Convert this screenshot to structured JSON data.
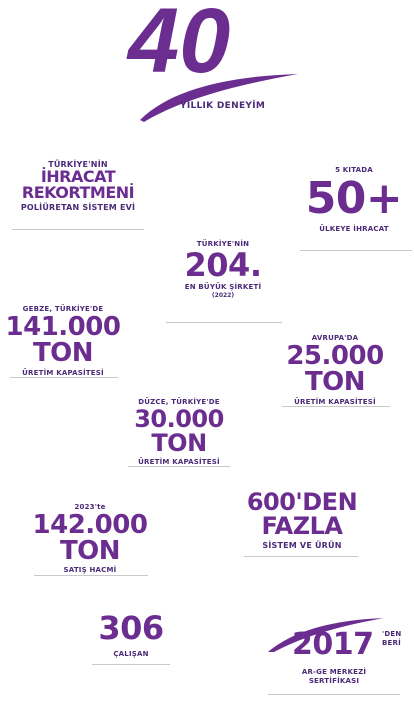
{
  "hero": {
    "number": "40",
    "label": "YILLIK DENEYİM"
  },
  "stats": {
    "export_record": {
      "line1": "TÜRKİYE'NİN",
      "line2": "İHRACAT",
      "line3": "REKORTMENİ",
      "line4": "POLİÜRETAN SİSTEM EVİ"
    },
    "continents": {
      "top": "5 KITADA",
      "value": "50+",
      "bottom": "ÜLKEYE İHRACAT"
    },
    "largest": {
      "top": "TÜRKİYE'NİN",
      "value": "204.",
      "bottom": "EN BÜYÜK ŞİRKETİ",
      "note": "(2022)"
    },
    "gebze": {
      "top": "GEBZE, TÜRKİYE'DE",
      "value": "141.000",
      "unit": "TON",
      "bottom": "ÜRETİM KAPASİTESİ"
    },
    "europe": {
      "top": "AVRUPA'DA",
      "value": "25.000",
      "unit": "TON",
      "bottom": "ÜRETİM KAPASİTESİ"
    },
    "duzce": {
      "top": "DÜZCE, TÜRKİYE'DE",
      "value": "30.000",
      "unit": "TON",
      "bottom": "ÜRETİM KAPASİTESİ"
    },
    "sales": {
      "top": "2023'te",
      "value": "142.000",
      "unit": "TON",
      "bottom": "SATIŞ HACMİ"
    },
    "systems": {
      "line1": "600'DEN",
      "line2": "FAZLA",
      "bottom": "SİSTEM VE ÜRÜN"
    },
    "employees": {
      "value": "306",
      "bottom": "ÇALIŞAN"
    },
    "rnd": {
      "value": "2017",
      "suffix1": "'DEN",
      "suffix2": "BERİ",
      "bottom1": "AR-GE MERKEZİ",
      "bottom2": "SERTİFİKASI"
    }
  },
  "colors": {
    "brand_purple": "#6b2d8f",
    "text_purple": "#4b2a78",
    "rule_gray": "#c9c9c9"
  }
}
